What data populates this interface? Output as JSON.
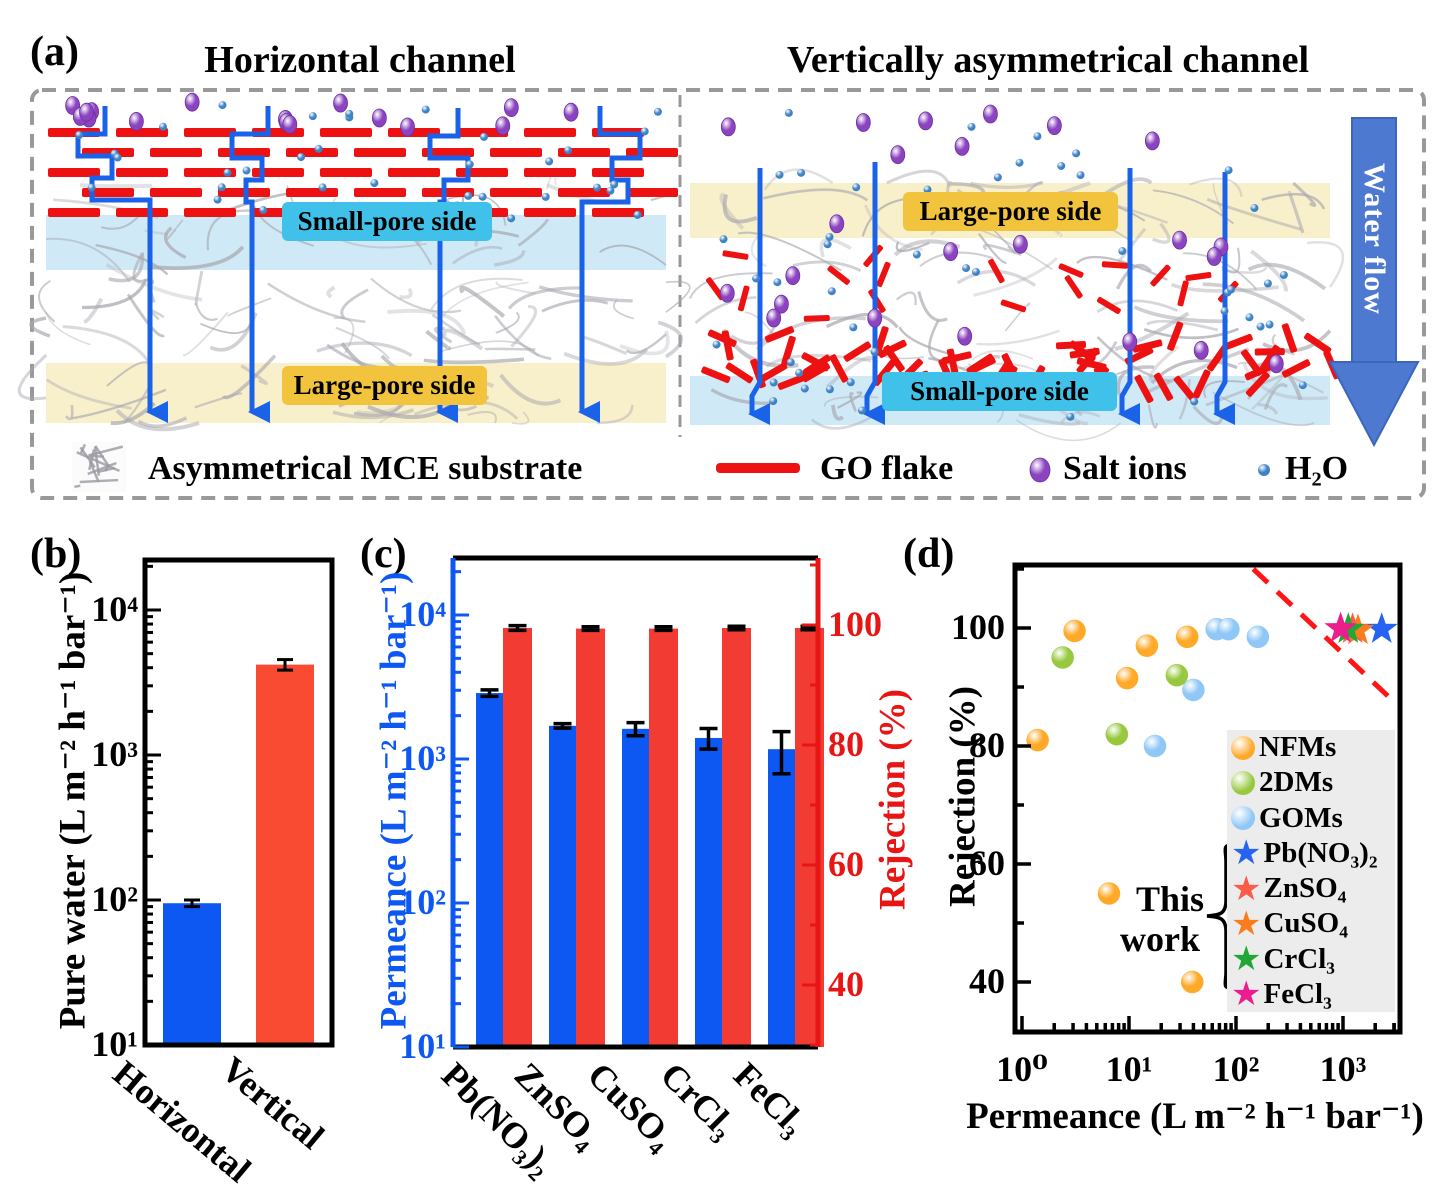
{
  "panel_a": {
    "label": "(a)",
    "left": {
      "title": "Horizontal channel",
      "small_pore_label": "Small-pore side",
      "large_pore_label": "Large-pore side"
    },
    "right": {
      "title": "Vertically asymmetrical channel",
      "large_pore_label": "Large-pore side",
      "small_pore_label": "Small-pore side",
      "water_flow_label": "Water flow"
    },
    "legend": {
      "substrate": "Asymmetrical MCE substrate",
      "go_flake": "GO flake",
      "salt_ions": "Salt ions",
      "water": "H₂O"
    },
    "colors": {
      "go_flake": "#ee1111",
      "channel_blue": "#1a63e8",
      "salt_ion": "#8b43c0",
      "water_dot": "#3e83c6",
      "small_pore_chip": "#3fc1e9",
      "large_pore_chip": "#f2c43d",
      "small_pore_band": "#cfe9f6",
      "large_pore_band": "#f8efcb",
      "water_flow_arrow": "#4e79d0",
      "fiber_gray": "#a8a8b0",
      "border_gray": "#999999"
    }
  },
  "panel_b": {
    "label": "(b)"
  },
  "panel_c": {
    "label": "(c)"
  },
  "panel_d": {
    "label": "(d)"
  },
  "chart_data": [
    {
      "id": "b",
      "type": "bar",
      "ylabel": "Pure water (L m⁻² h⁻¹ bar⁻¹)",
      "yscale": "log",
      "ylim": [
        10,
        21000
      ],
      "yticks": [
        {
          "v": 10,
          "label": "10¹"
        },
        {
          "v": 100,
          "label": "10²"
        },
        {
          "v": 1000,
          "label": "10³"
        },
        {
          "v": 10000,
          "label": "10⁴"
        }
      ],
      "categories": [
        "Horizontal",
        "Vertical"
      ],
      "values": [
        95,
        4200
      ],
      "errors": [
        5,
        350
      ],
      "bar_colors": [
        "#0d57f2",
        "#f94b32"
      ]
    },
    {
      "id": "c",
      "type": "bar-dual",
      "left_ylabel": "Permeance (L m⁻² h⁻¹ bar⁻¹)",
      "right_ylabel": "Rejection (%)",
      "left_scale": "log",
      "left_lim": [
        10,
        22000
      ],
      "right_lim": [
        30,
        111
      ],
      "left_ticks": [
        {
          "v": 10,
          "label": "10¹"
        },
        {
          "v": 100,
          "label": "10²"
        },
        {
          "v": 1000,
          "label": "10³"
        },
        {
          "v": 10000,
          "label": "10⁴"
        }
      ],
      "right_ticks": [
        40,
        60,
        80,
        100
      ],
      "categories": [
        "Pb(NO₃)₂",
        "ZnSO₄",
        "CuSO₄",
        "CrCl₃",
        "FeCl₃"
      ],
      "series": [
        {
          "name": "Permeance",
          "axis": "left",
          "color": "#0d57f2",
          "values": [
            2870,
            1700,
            1620,
            1400,
            1170
          ],
          "errors": [
            150,
            60,
            170,
            230,
            380
          ]
        },
        {
          "name": "Rejection",
          "axis": "right",
          "color": "#f23b33",
          "values": [
            99.5,
            99.4,
            99.4,
            99.5,
            99.5
          ],
          "errors": [
            0.4,
            0.3,
            0.3,
            0.3,
            0.3
          ]
        }
      ]
    },
    {
      "id": "d",
      "type": "scatter",
      "xlabel": "Permeance (L m⁻² h⁻¹ bar⁻¹)",
      "ylabel": "Rejection (%)",
      "xscale": "log",
      "xlim": [
        0.86,
        3400
      ],
      "ylim": [
        31,
        111
      ],
      "xticks": [
        {
          "v": 1,
          "label": "10⁰"
        },
        {
          "v": 10,
          "label": "10¹"
        },
        {
          "v": 100,
          "label": "10²"
        },
        {
          "v": 1000,
          "label": "10³"
        }
      ],
      "yticks": [
        40,
        60,
        80,
        100
      ],
      "series": [
        {
          "name": "NFMs",
          "marker": "circle",
          "color": "#ffa928",
          "points": [
            [
              1.4,
              81
            ],
            [
              3.1,
              99.5
            ],
            [
              6.5,
              55
            ],
            [
              9.6,
              91.5
            ],
            [
              14.7,
              97
            ],
            [
              35,
              98.5
            ],
            [
              39,
              40
            ]
          ]
        },
        {
          "name": "2DMs",
          "marker": "circle",
          "color": "#97c83e",
          "points": [
            [
              2.4,
              95
            ],
            [
              7.7,
              82
            ],
            [
              28,
              92
            ]
          ]
        },
        {
          "name": "GOMs",
          "marker": "circle",
          "color": "#8fc7f7",
          "points": [
            [
              17.5,
              80
            ],
            [
              40,
              89.5
            ],
            [
              66,
              99.8
            ],
            [
              85,
              99.8
            ],
            [
              160,
              98.5
            ]
          ]
        },
        {
          "name": "Pb(NO₃)₂",
          "marker": "star",
          "color": "#2563f0",
          "points": [
            [
              2300,
              99.8
            ]
          ]
        },
        {
          "name": "ZnSO₄",
          "marker": "star",
          "color": "#fb5c49",
          "points": [
            [
              1230,
              99.8
            ]
          ]
        },
        {
          "name": "CuSO₄",
          "marker": "star",
          "color": "#fa7d1d",
          "points": [
            [
              1380,
              99.6
            ]
          ]
        },
        {
          "name": "CrCl₃",
          "marker": "star",
          "color": "#21a637",
          "points": [
            [
              1120,
              99.8
            ]
          ]
        },
        {
          "name": "FeCl₃",
          "marker": "star",
          "color": "#ec1d8c",
          "points": [
            [
              950,
              99.9
            ]
          ]
        }
      ],
      "tradeoff_line": {
        "color": "#ff1515",
        "style": "dashed",
        "points": [
          [
            145,
            110
          ],
          [
            3200,
            87
          ]
        ]
      },
      "annotation_lines": [
        "This",
        "work"
      ]
    }
  ]
}
